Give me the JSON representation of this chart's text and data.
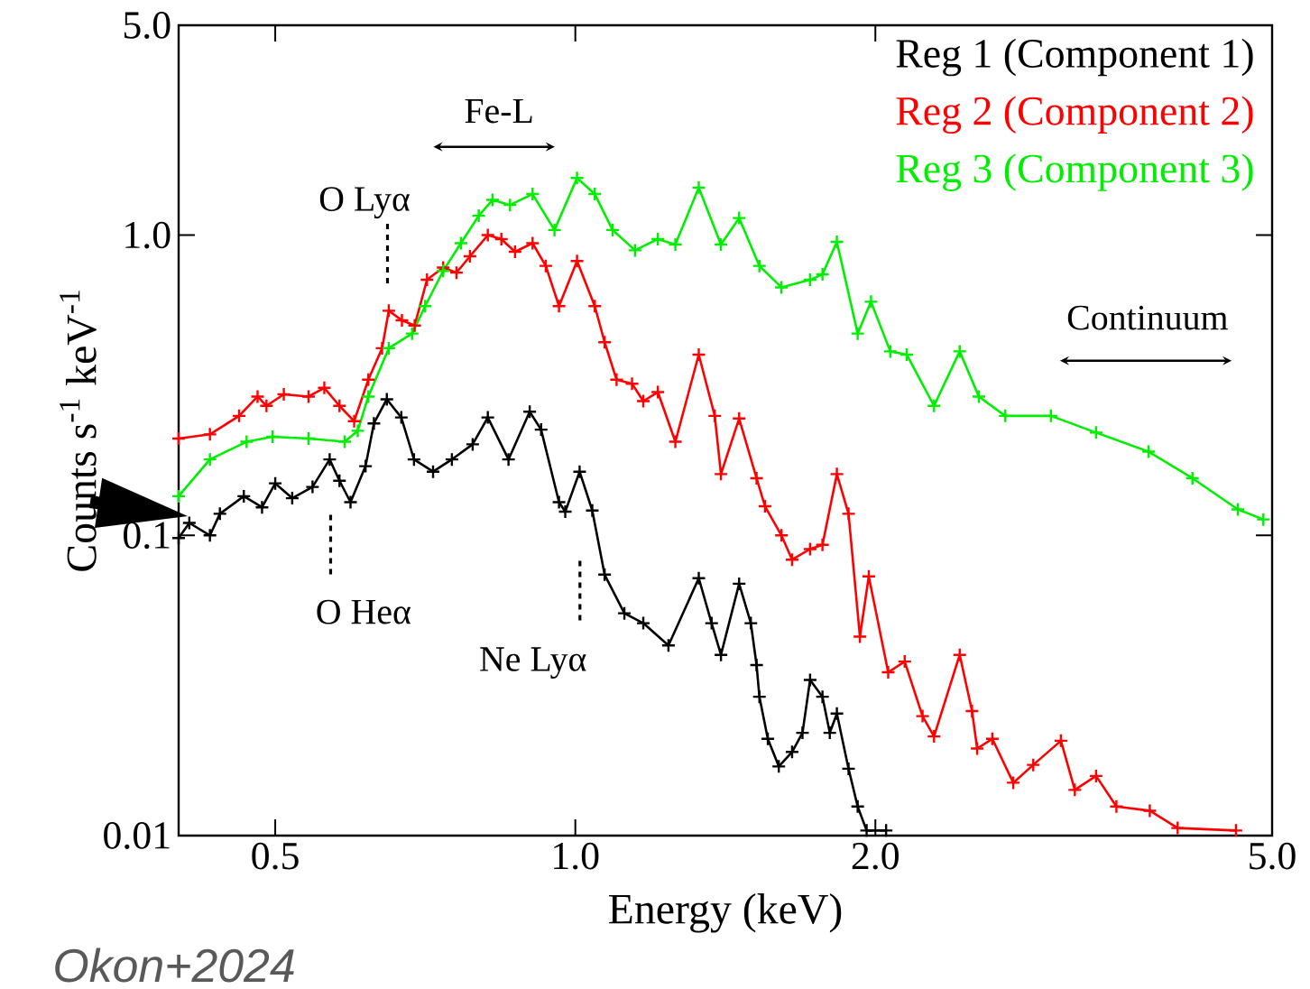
{
  "chart_data": {
    "type": "line",
    "xlabel": "Energy (keV)",
    "ylabel": "Counts s$^{-1}$ keV$^{-1}$",
    "log": "xy",
    "marker": "cross",
    "legend": "top right",
    "xlim": [
      0.4,
      5.0
    ],
    "ylim": [
      0.01,
      5.0
    ],
    "xticks": [
      {
        "value": 0.5,
        "label": "0.5"
      },
      {
        "value": 1.0,
        "label": "1.0"
      },
      {
        "value": 2.0,
        "label": "2.0"
      },
      {
        "value": 5.0,
        "label": "5.0"
      }
    ],
    "yticks": [
      {
        "value": 0.01,
        "label": "0.01"
      },
      {
        "value": 0.1,
        "label": "0.1"
      },
      {
        "value": 1.0,
        "label": "1.0"
      },
      {
        "value": 5.0,
        "label": "5.0"
      }
    ],
    "series": [
      {
        "name": "Reg 1 (Component 1)",
        "color": "#000000",
        "x": [
          0.4,
          0.41,
          0.43,
          0.44,
          0.465,
          0.485,
          0.5,
          0.52,
          0.545,
          0.567,
          0.58,
          0.595,
          0.616,
          0.628,
          0.647,
          0.669,
          0.689,
          0.72,
          0.752,
          0.789,
          0.817,
          0.857,
          0.9,
          0.924,
          0.963,
          0.977,
          1.01,
          1.04,
          1.07,
          1.12,
          1.17,
          1.24,
          1.33,
          1.37,
          1.4,
          1.46,
          1.5,
          1.52,
          1.53,
          1.56,
          1.6,
          1.65,
          1.69,
          1.72,
          1.77,
          1.8,
          1.83,
          1.88,
          1.92,
          1.96,
          2.05
        ],
        "values": [
          0.098,
          0.11,
          0.1,
          0.118,
          0.135,
          0.124,
          0.149,
          0.133,
          0.145,
          0.179,
          0.152,
          0.129,
          0.17,
          0.236,
          0.284,
          0.247,
          0.179,
          0.163,
          0.179,
          0.201,
          0.247,
          0.179,
          0.258,
          0.225,
          0.129,
          0.12,
          0.163,
          0.121,
          0.074,
          0.055,
          0.051,
          0.043,
          0.072,
          0.051,
          0.04,
          0.069,
          0.051,
          0.037,
          0.029,
          0.021,
          0.017,
          0.019,
          0.022,
          0.033,
          0.029,
          0.022,
          0.0255,
          0.0167,
          0.0125,
          0.0104,
          0.0104
        ]
      },
      {
        "name": "Reg 2 (Component 2)",
        "color": "#ff0000",
        "x": [
          0.4,
          0.43,
          0.46,
          0.48,
          0.49,
          0.51,
          0.54,
          0.56,
          0.58,
          0.6,
          0.62,
          0.64,
          0.65,
          0.67,
          0.69,
          0.71,
          0.737,
          0.76,
          0.784,
          0.817,
          0.843,
          0.87,
          0.906,
          0.934,
          0.963,
          1.004,
          1.046,
          1.07,
          1.1,
          1.14,
          1.17,
          1.21,
          1.26,
          1.33,
          1.38,
          1.4,
          1.46,
          1.52,
          1.55,
          1.61,
          1.65,
          1.72,
          1.77,
          1.83,
          1.88,
          1.93,
          1.97,
          2.06,
          2.14,
          2.23,
          2.29,
          2.43,
          2.5,
          2.53,
          2.62,
          2.75,
          2.88,
          3.07,
          3.17,
          3.33,
          3.49,
          3.77,
          4.02,
          4.6
        ],
        "values": [
          0.21,
          0.217,
          0.25,
          0.29,
          0.27,
          0.295,
          0.29,
          0.31,
          0.27,
          0.24,
          0.33,
          0.42,
          0.56,
          0.52,
          0.5,
          0.71,
          0.78,
          0.75,
          0.85,
          1.0,
          0.97,
          0.88,
          0.94,
          0.79,
          0.58,
          0.82,
          0.58,
          0.44,
          0.33,
          0.32,
          0.28,
          0.3,
          0.205,
          0.4,
          0.25,
          0.16,
          0.245,
          0.155,
          0.125,
          0.1,
          0.083,
          0.09,
          0.093,
          0.16,
          0.118,
          0.046,
          0.073,
          0.035,
          0.038,
          0.025,
          0.0214,
          0.04,
          0.026,
          0.0195,
          0.021,
          0.015,
          0.0172,
          0.0207,
          0.0142,
          0.0158,
          0.0125,
          0.0121,
          0.0106,
          0.0104
        ]
      },
      {
        "name": "Reg 3 (Component 3)",
        "color": "#00ee00",
        "x": [
          0.4,
          0.43,
          0.468,
          0.497,
          0.54,
          0.587,
          0.605,
          0.62,
          0.65,
          0.686,
          0.707,
          0.737,
          0.768,
          0.8,
          0.826,
          0.86,
          0.906,
          0.953,
          1.004,
          1.046,
          1.09,
          1.148,
          1.21,
          1.26,
          1.33,
          1.4,
          1.46,
          1.53,
          1.61,
          1.72,
          1.77,
          1.83,
          1.92,
          1.98,
          2.07,
          2.15,
          2.29,
          2.43,
          2.54,
          2.7,
          3.0,
          3.33,
          3.76,
          4.16,
          4.62,
          4.9
        ],
        "values": [
          0.135,
          0.179,
          0.205,
          0.213,
          0.21,
          0.205,
          0.223,
          0.29,
          0.42,
          0.47,
          0.58,
          0.76,
          0.94,
          1.16,
          1.31,
          1.26,
          1.37,
          1.04,
          1.55,
          1.37,
          1.04,
          0.89,
          0.97,
          0.93,
          1.44,
          0.93,
          1.14,
          0.79,
          0.67,
          0.71,
          0.74,
          0.95,
          0.47,
          0.6,
          0.41,
          0.4,
          0.27,
          0.41,
          0.29,
          0.25,
          0.25,
          0.22,
          0.19,
          0.155,
          0.122,
          0.113
        ]
      }
    ],
    "annotations": [
      "Fe-L",
      "O Lyα",
      "O Heα",
      "Ne Lyα",
      "Continuum",
      "Okon+2024"
    ]
  }
}
